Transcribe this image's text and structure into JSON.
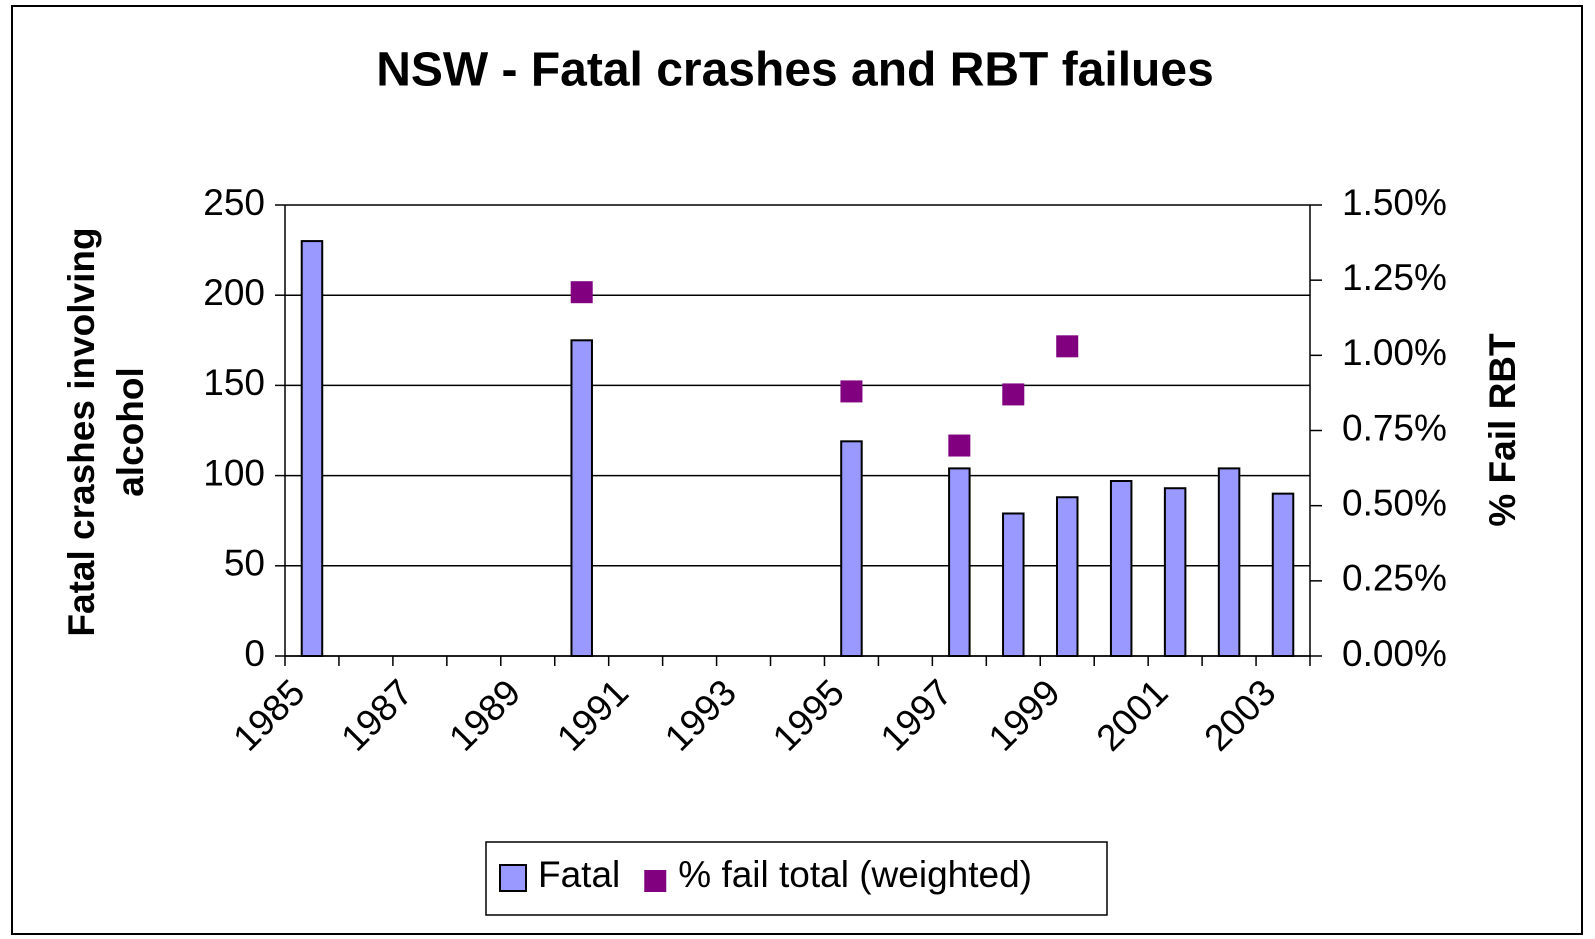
{
  "chart_data": {
    "type": "bar",
    "title": "NSW - Fatal crashes and RBT failues",
    "ylabel": [
      "Fatal crashes involving",
      "alcohol"
    ],
    "y2label": "% Fail RBT",
    "categories": [
      "1985",
      null,
      "1987",
      null,
      "1989",
      null,
      "1991",
      null,
      "1993",
      null,
      "1995",
      null,
      "1997",
      null,
      "1999",
      null,
      "2001",
      null,
      "2003"
    ],
    "series": [
      {
        "name": "Fatal",
        "type": "bar",
        "color": "#9999ff",
        "values": [
          230,
          null,
          null,
          null,
          null,
          175,
          null,
          null,
          null,
          null,
          119,
          null,
          104,
          79,
          88,
          97,
          93,
          104,
          90
        ]
      },
      {
        "name": "% fail total (weighted)",
        "type": "scatter",
        "axis": "y2",
        "color": "#800080",
        "values": [
          null,
          null,
          null,
          null,
          null,
          1.21,
          null,
          null,
          null,
          null,
          0.88,
          null,
          0.7,
          0.87,
          1.03,
          null,
          null,
          null,
          null
        ]
      }
    ],
    "ylim": [
      0,
      250
    ],
    "yticks": [
      0,
      50,
      100,
      150,
      200,
      250
    ],
    "y2lim": [
      0,
      1.5
    ],
    "y2ticks": [
      {
        "value": 0,
        "label": "0.00%"
      },
      {
        "value": 0.25,
        "label": "0.25%"
      },
      {
        "value": 0.5,
        "label": "0.50%"
      },
      {
        "value": 0.75,
        "label": "0.75%"
      },
      {
        "value": 1.0,
        "label": "1.00%"
      },
      {
        "value": 1.25,
        "label": "1.25%"
      },
      {
        "value": 1.5,
        "label": "1.50%"
      }
    ],
    "grid": true,
    "legend": "bottom"
  }
}
